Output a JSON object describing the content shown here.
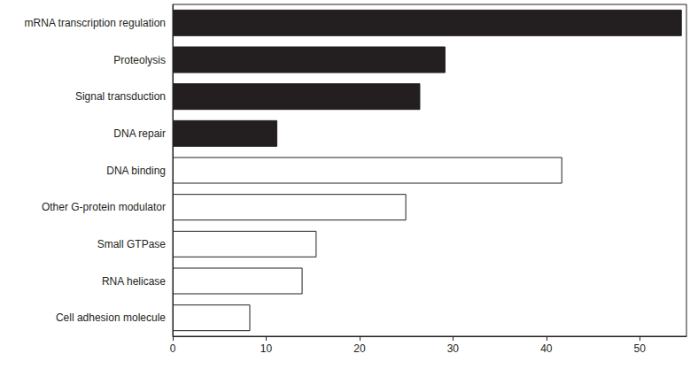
{
  "chart_data": {
    "type": "bar",
    "orientation": "horizontal",
    "categories": [
      "mRNA transcription regulation",
      "Proteolysis",
      "Signal transduction",
      "DNA repair",
      "DNA binding",
      "Other G-protein modulator",
      "Small GTPase",
      "RNA helicase",
      "Cell adhesion molecule"
    ],
    "values": [
      54.5,
      29.2,
      26.5,
      11.2,
      41.7,
      25.0,
      15.4,
      13.9,
      8.3
    ],
    "colors": [
      "#231f20",
      "#231f20",
      "#231f20",
      "#231f20",
      "#ffffff",
      "#ffffff",
      "#ffffff",
      "#ffffff",
      "#ffffff"
    ],
    "xlim": [
      0,
      55
    ],
    "xticks": [
      0,
      10,
      20,
      30,
      40,
      50
    ],
    "grid": false
  }
}
